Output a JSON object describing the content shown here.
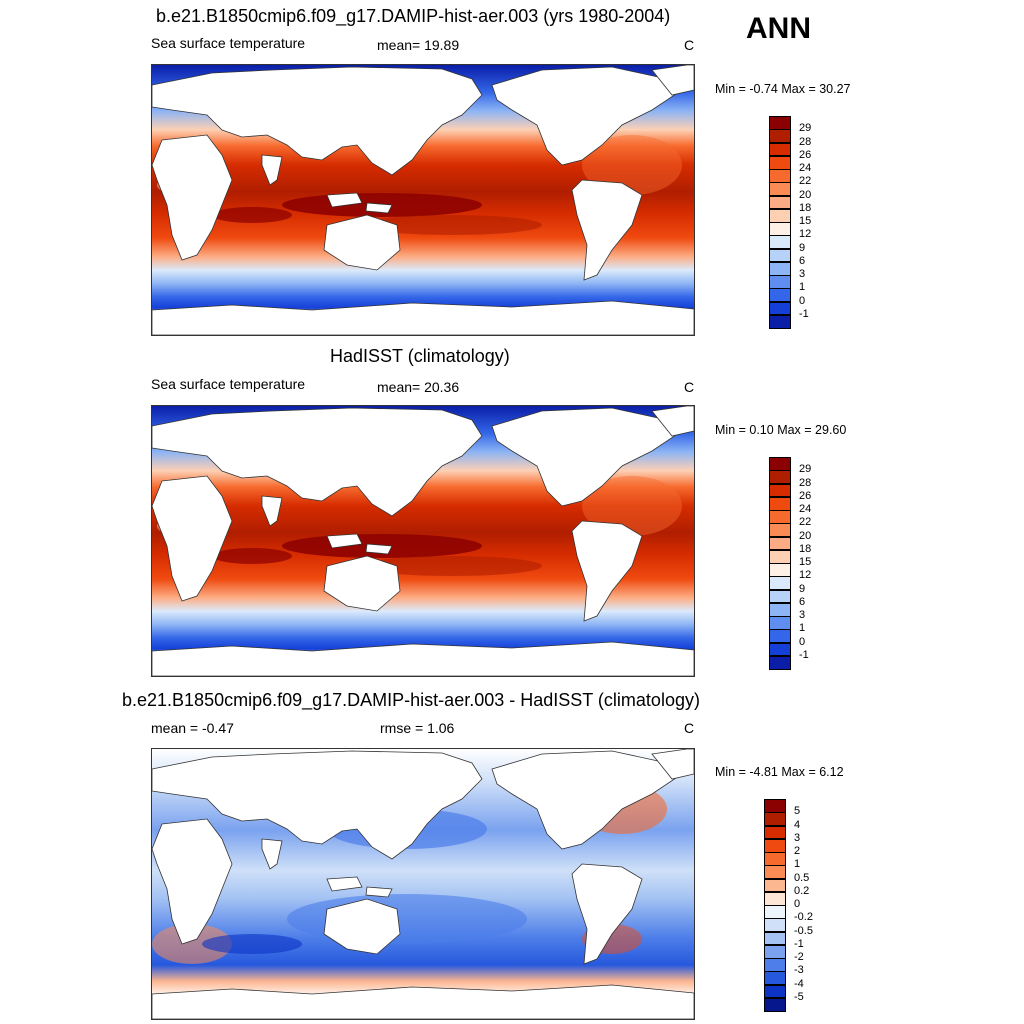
{
  "season": "ANN",
  "panels": [
    {
      "title": "b.e21.B1850cmip6.f09_g17.DAMIP-hist-aer.003 (yrs 1980-2004)",
      "left_label": "Sea surface temperature",
      "mid_label": "mean=  19.89",
      "units": "C",
      "minmax": "Min =  -0.74 Max =  30.27"
    },
    {
      "title": "HadISST (climatology)",
      "left_label": "Sea surface temperature",
      "mid_label": "mean=  20.36",
      "units": "C",
      "minmax": "Min =   0.10 Max =  29.60"
    },
    {
      "title": "b.e21.B1850cmip6.f09_g17.DAMIP-hist-aer.003 - HadISST (climatology)",
      "left_label": "mean =  -0.47",
      "mid_label": "rmse =   1.06",
      "units": "C",
      "minmax": "Min =  -4.81 Max =   6.12"
    }
  ],
  "chart_data": [
    {
      "type": "heatmap",
      "title": "b.e21.B1850cmip6.f09_g17.DAMIP-hist-aer.003 (yrs 1980-2004)",
      "variable": "Sea surface temperature",
      "units": "C",
      "mean": 19.89,
      "min": -0.74,
      "max": 30.27,
      "colorbar": {
        "labels": [
          "29",
          "28",
          "26",
          "24",
          "22",
          "20",
          "18",
          "15",
          "12",
          "9",
          "6",
          "3",
          "1",
          "0",
          "-1"
        ],
        "colors": [
          "#8b0000",
          "#b01e00",
          "#d62c00",
          "#ef4a10",
          "#f76a2e",
          "#fb8b55",
          "#fcac84",
          "#fdd0b4",
          "#fef0e4",
          "#dbeafb",
          "#b6d2f9",
          "#8db4f4",
          "#5f8ef0",
          "#3366e8",
          "#1540d8",
          "#0a1ea8"
        ]
      }
    },
    {
      "type": "heatmap",
      "title": "HadISST (climatology)",
      "variable": "Sea surface temperature",
      "units": "C",
      "mean": 20.36,
      "min": 0.1,
      "max": 29.6,
      "colorbar": {
        "labels": [
          "29",
          "28",
          "26",
          "24",
          "22",
          "20",
          "18",
          "15",
          "12",
          "9",
          "6",
          "3",
          "1",
          "0",
          "-1"
        ],
        "colors": [
          "#8b0000",
          "#b01e00",
          "#d62c00",
          "#ef4a10",
          "#f76a2e",
          "#fb8b55",
          "#fcac84",
          "#fdd0b4",
          "#fef0e4",
          "#dbeafb",
          "#b6d2f9",
          "#8db4f4",
          "#5f8ef0",
          "#3366e8",
          "#1540d8",
          "#0a1ea8"
        ]
      }
    },
    {
      "type": "heatmap",
      "title": "b.e21.B1850cmip6.f09_g17.DAMIP-hist-aer.003 - HadISST (climatology)",
      "units": "C",
      "mean": -0.47,
      "rmse": 1.06,
      "min": -4.81,
      "max": 6.12,
      "colorbar": {
        "labels": [
          "5",
          "4",
          "3",
          "2",
          "1",
          "0.5",
          "0.2",
          "0",
          "-0.2",
          "-0.5",
          "-1",
          "-2",
          "-3",
          "-4",
          "-5"
        ],
        "colors": [
          "#8b0000",
          "#b01e00",
          "#d62c00",
          "#ef4a10",
          "#f76a2e",
          "#fb8b55",
          "#fcb690",
          "#fde6d6",
          "#eef4fc",
          "#cfe0f8",
          "#a5c3f3",
          "#7aa2ef",
          "#4d7ee9",
          "#2658dd",
          "#0c34c4",
          "#06168c"
        ]
      }
    }
  ]
}
